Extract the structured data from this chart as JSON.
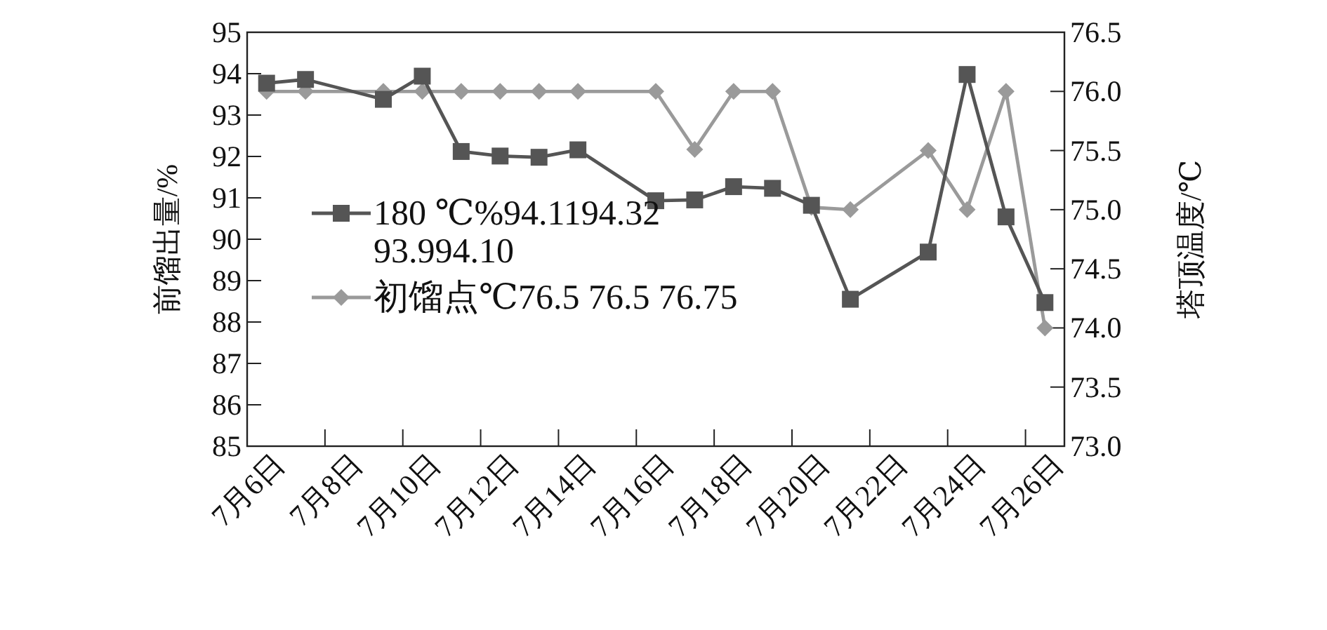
{
  "chart_data": {
    "type": "line",
    "ylabel": "前馏出量/%",
    "y2label": "塔顶温度/℃",
    "legend": "left",
    "categories": [
      "7月6日",
      null,
      "7月8日",
      null,
      "7月10日",
      null,
      "7月12日",
      null,
      "7月14日",
      null,
      "7月16日",
      null,
      "7月18日",
      null,
      "7月20日",
      null,
      "7月22日",
      null,
      "7月24日",
      null,
      "7月26日"
    ],
    "ylim": [
      85,
      95
    ],
    "yticks": [
      85,
      86,
      87,
      88,
      89,
      90,
      91,
      92,
      93,
      94,
      95
    ],
    "y2lim": [
      73.0,
      76.5
    ],
    "y2ticks": [
      {
        "value": 73.0,
        "label": "73.0"
      },
      {
        "value": 73.5,
        "label": "73.5"
      },
      {
        "value": 74.0,
        "label": "74.0"
      },
      {
        "value": 74.5,
        "label": "74.5"
      },
      {
        "value": 75.0,
        "label": "75.0"
      },
      {
        "value": 75.5,
        "label": "75.5"
      },
      {
        "value": 76.0,
        "label": "76.0"
      },
      {
        "value": 76.5,
        "label": "76.5"
      }
    ],
    "series": [
      {
        "name": "180 ℃%94.1194.32\n93.994.10",
        "color": "#555555",
        "marker": "square",
        "values": [
          93.77,
          93.86,
          null,
          93.38,
          93.94,
          92.12,
          92.01,
          91.98,
          92.16,
          null,
          90.93,
          90.95,
          91.27,
          91.23,
          90.82,
          88.55,
          null,
          89.69,
          93.98,
          90.54,
          88.47
        ]
      },
      {
        "name": "初馏点℃76.5 76.5 76.75",
        "color": "#9a9a9a",
        "marker": "diamond",
        "axis": "y2",
        "values": [
          76.0,
          76.0,
          null,
          76.0,
          76.0,
          76.0,
          76.0,
          76.0,
          76.0,
          null,
          76.0,
          75.51,
          76.0,
          76.0,
          75.02,
          75.0,
          null,
          75.5,
          75.0,
          76.0,
          74.0
        ]
      }
    ]
  }
}
